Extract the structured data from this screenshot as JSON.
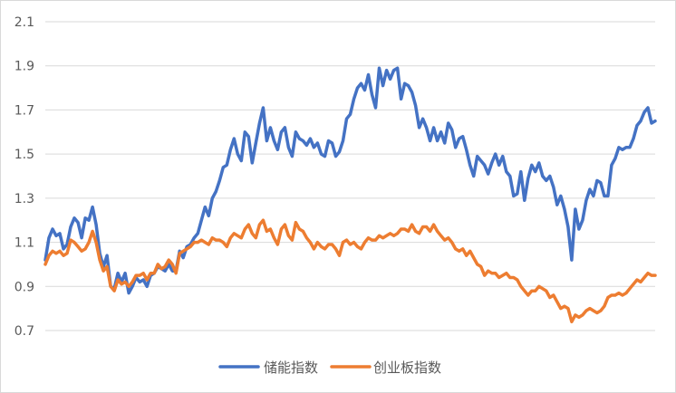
{
  "chart_data": {
    "type": "line",
    "title": "",
    "xlabel": "",
    "ylabel": "",
    "ylim": [
      0.7,
      2.1
    ],
    "yticks": [
      0.7,
      0.9,
      1.1,
      1.3,
      1.5,
      1.7,
      1.9,
      2.1
    ],
    "ytick_labels": [
      "0.7",
      "0.9",
      "1.1",
      "1.3",
      "1.5",
      "1.7",
      "1.9",
      "2.1"
    ],
    "grid": "horizontal",
    "legend_position": "bottom-center",
    "x": [
      0,
      4,
      8,
      12,
      16,
      20,
      24,
      28,
      32,
      36,
      40,
      44,
      48,
      52,
      56,
      60,
      64,
      68,
      72,
      76,
      80,
      84,
      88,
      92,
      96,
      100,
      104,
      108,
      112,
      116,
      120,
      124,
      128,
      132,
      136,
      140,
      144,
      148,
      152,
      156,
      160,
      164,
      168,
      172,
      176,
      180,
      184,
      188,
      192,
      196,
      200,
      204,
      208,
      212,
      216,
      220,
      224,
      228,
      232,
      236,
      240,
      244,
      248,
      252,
      256,
      260,
      264,
      268,
      272,
      276,
      280,
      284,
      288,
      292,
      296,
      300,
      304,
      308,
      312,
      316,
      320,
      324,
      328,
      332,
      336,
      340,
      344,
      348,
      352,
      356,
      360,
      364,
      368,
      372,
      376,
      380,
      384,
      388,
      392,
      396,
      400,
      404,
      408,
      412,
      416,
      420,
      424,
      428,
      432,
      436,
      440,
      444,
      448,
      452,
      456,
      460,
      464,
      468,
      472,
      476,
      480,
      484,
      488,
      492,
      496,
      500,
      504,
      508,
      512,
      516,
      520,
      524,
      528,
      532,
      536,
      540,
      544,
      548,
      552,
      556,
      560,
      564,
      568,
      572,
      576,
      580,
      584,
      588,
      592,
      596,
      600,
      604,
      608,
      612,
      616,
      620,
      624,
      628,
      632,
      636,
      640,
      644,
      648,
      652,
      656,
      660,
      664,
      668,
      672
    ],
    "series": [
      {
        "name": "储能指数",
        "color": "#4472C4",
        "values": [
          1.02,
          1.12,
          1.16,
          1.13,
          1.14,
          1.07,
          1.09,
          1.17,
          1.21,
          1.19,
          1.12,
          1.21,
          1.2,
          1.26,
          1.18,
          1.05,
          0.99,
          1.04,
          0.9,
          0.89,
          0.96,
          0.92,
          0.96,
          0.87,
          0.9,
          0.94,
          0.92,
          0.93,
          0.9,
          0.95,
          0.96,
          0.99,
          0.98,
          0.97,
          1.0,
          0.97,
          0.97,
          1.06,
          1.03,
          1.08,
          1.09,
          1.12,
          1.14,
          1.2,
          1.26,
          1.22,
          1.3,
          1.33,
          1.38,
          1.44,
          1.45,
          1.52,
          1.57,
          1.5,
          1.47,
          1.6,
          1.58,
          1.46,
          1.55,
          1.64,
          1.71,
          1.56,
          1.62,
          1.56,
          1.52,
          1.6,
          1.62,
          1.53,
          1.49,
          1.6,
          1.57,
          1.56,
          1.54,
          1.57,
          1.53,
          1.55,
          1.5,
          1.49,
          1.56,
          1.55,
          1.49,
          1.51,
          1.56,
          1.66,
          1.68,
          1.75,
          1.8,
          1.82,
          1.79,
          1.86,
          1.77,
          1.71,
          1.89,
          1.81,
          1.88,
          1.84,
          1.88,
          1.89,
          1.75,
          1.82,
          1.81,
          1.78,
          1.72,
          1.62,
          1.66,
          1.62,
          1.56,
          1.62,
          1.56,
          1.6,
          1.55,
          1.64,
          1.61,
          1.53,
          1.57,
          1.58,
          1.52,
          1.45,
          1.4,
          1.49,
          1.47,
          1.45,
          1.41,
          1.46,
          1.5,
          1.45,
          1.49,
          1.42,
          1.4,
          1.31,
          1.32,
          1.42,
          1.29,
          1.39,
          1.45,
          1.42,
          1.46,
          1.4,
          1.38,
          1.4,
          1.35,
          1.27,
          1.31,
          1.25,
          1.17,
          1.02,
          1.25,
          1.16,
          1.2,
          1.29,
          1.34,
          1.31,
          1.38,
          1.37,
          1.31,
          1.31,
          1.45,
          1.48,
          1.53,
          1.52,
          1.53,
          1.53,
          1.57,
          1.63,
          1.65,
          1.69,
          1.71,
          1.64,
          1.65
        ]
      },
      {
        "name": "创业板指数",
        "color": "#ED7D31",
        "values": [
          1.0,
          1.04,
          1.06,
          1.05,
          1.06,
          1.04,
          1.05,
          1.11,
          1.1,
          1.08,
          1.06,
          1.07,
          1.1,
          1.15,
          1.1,
          1.02,
          0.97,
          0.99,
          0.9,
          0.88,
          0.93,
          0.91,
          0.92,
          0.9,
          0.92,
          0.95,
          0.95,
          0.96,
          0.93,
          0.96,
          0.96,
          1.0,
          0.98,
          0.99,
          1.02,
          1.0,
          0.96,
          1.05,
          1.06,
          1.07,
          1.08,
          1.1,
          1.1,
          1.11,
          1.1,
          1.09,
          1.12,
          1.11,
          1.11,
          1.1,
          1.08,
          1.12,
          1.14,
          1.13,
          1.12,
          1.16,
          1.18,
          1.14,
          1.12,
          1.18,
          1.2,
          1.15,
          1.16,
          1.12,
          1.09,
          1.16,
          1.18,
          1.13,
          1.11,
          1.19,
          1.16,
          1.15,
          1.12,
          1.1,
          1.07,
          1.1,
          1.08,
          1.07,
          1.09,
          1.09,
          1.07,
          1.04,
          1.1,
          1.11,
          1.09,
          1.1,
          1.08,
          1.07,
          1.1,
          1.12,
          1.11,
          1.11,
          1.13,
          1.12,
          1.13,
          1.14,
          1.13,
          1.14,
          1.16,
          1.16,
          1.15,
          1.18,
          1.15,
          1.14,
          1.17,
          1.17,
          1.15,
          1.18,
          1.15,
          1.13,
          1.11,
          1.12,
          1.1,
          1.07,
          1.06,
          1.07,
          1.04,
          1.06,
          1.03,
          1.0,
          0.99,
          0.95,
          0.97,
          0.96,
          0.96,
          0.94,
          0.95,
          0.96,
          0.94,
          0.94,
          0.93,
          0.9,
          0.88,
          0.86,
          0.88,
          0.88,
          0.9,
          0.89,
          0.88,
          0.85,
          0.86,
          0.83,
          0.8,
          0.81,
          0.8,
          0.74,
          0.77,
          0.76,
          0.77,
          0.79,
          0.8,
          0.79,
          0.78,
          0.79,
          0.81,
          0.85,
          0.86,
          0.86,
          0.87,
          0.86,
          0.87,
          0.89,
          0.91,
          0.93,
          0.92,
          0.94,
          0.96,
          0.95,
          0.95
        ]
      }
    ]
  }
}
